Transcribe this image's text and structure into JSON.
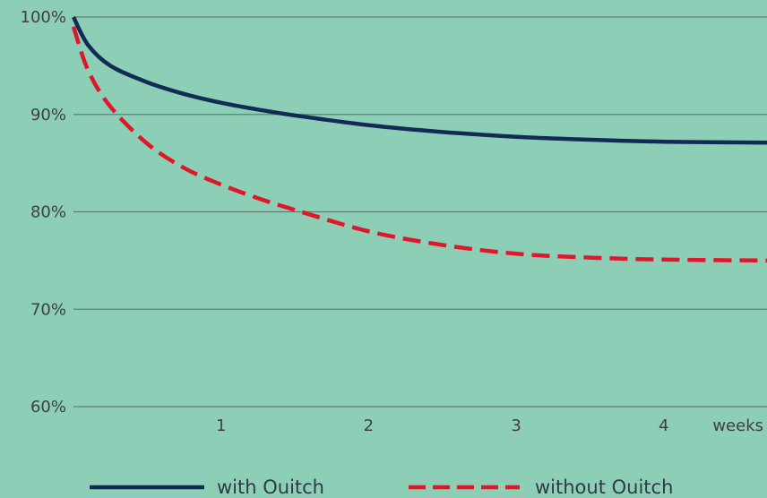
{
  "chart_data": {
    "type": "line",
    "title": "",
    "xlabel": "weeks",
    "ylabel": "",
    "x_ticks": [
      1,
      2,
      3,
      4
    ],
    "y_ticks": [
      60,
      70,
      80,
      90,
      100
    ],
    "y_tick_labels": [
      "60%",
      "70%",
      "80%",
      "90%",
      "100%"
    ],
    "xlim": [
      0,
      4.7
    ],
    "ylim": [
      60,
      100
    ],
    "grid": "horizontal",
    "legend_position": "bottom",
    "series": [
      {
        "name": "with Ouitch",
        "color": "#132a55",
        "line_style": "solid",
        "x": [
          0,
          0.1,
          0.25,
          0.5,
          0.75,
          1,
          1.25,
          1.5,
          2,
          2.5,
          3,
          3.5,
          4,
          4.7
        ],
        "y": [
          100,
          97.1,
          95.0,
          93.3,
          92.1,
          91.2,
          90.5,
          89.9,
          88.9,
          88.2,
          87.7,
          87.4,
          87.2,
          87.1
        ]
      },
      {
        "name": "without Ouitch",
        "color": "#e0162b",
        "line_style": "dashed",
        "x": [
          0,
          0.1,
          0.25,
          0.5,
          0.75,
          1,
          1.25,
          1.5,
          2,
          2.5,
          3,
          3.5,
          4,
          4.7
        ],
        "y": [
          99.0,
          94.5,
          90.8,
          87.0,
          84.5,
          82.8,
          81.4,
          80.2,
          78.0,
          76.6,
          75.7,
          75.3,
          75.1,
          75.0
        ]
      }
    ]
  }
}
